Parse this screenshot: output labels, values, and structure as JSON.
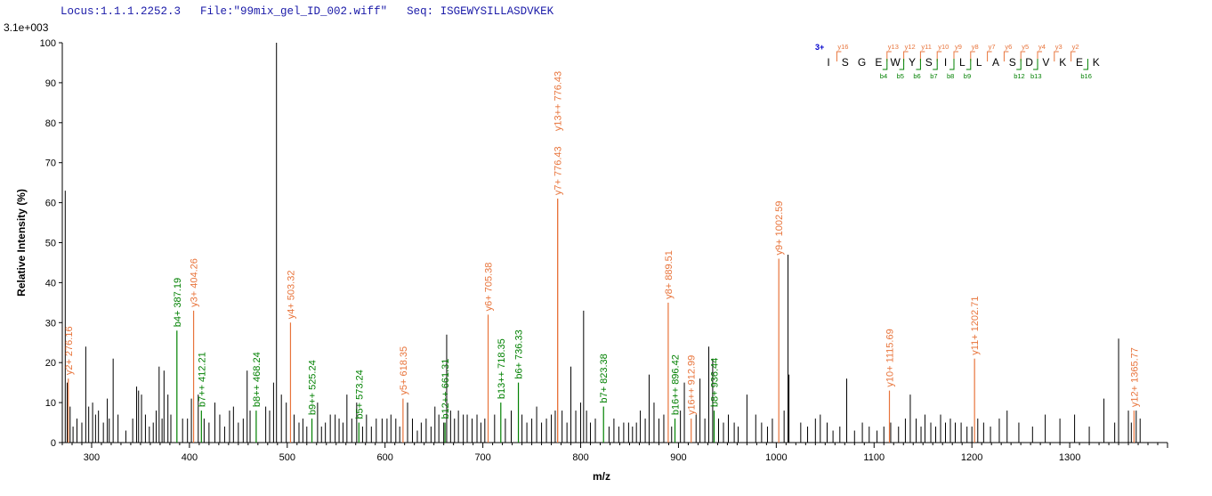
{
  "header": {
    "locus": "Locus:1.1.1.2252.3",
    "file": "File:\"99mix_gel_ID_002.wiff\"",
    "seq": "Seq: ISGEWYSILLASDVKEK"
  },
  "colors": {
    "b_ion": "#008000",
    "y_ion": "#e8743b",
    "unassigned": "#000000",
    "charge": "#0000cc"
  },
  "chart_data": {
    "type": "bar",
    "subtype": "mass-spectrum",
    "scale_label": "3.1e+003",
    "xlabel": "m/z",
    "ylabel": "Relative   Intensity (%)",
    "xlim": [
      270,
      1400
    ],
    "ylim": [
      0,
      100
    ],
    "xticks": [
      300,
      400,
      500,
      600,
      700,
      800,
      900,
      1000,
      1100,
      1200,
      1300
    ],
    "yticks": [
      0,
      10,
      20,
      30,
      40,
      50,
      60,
      70,
      80,
      90,
      100
    ],
    "annotated_peaks": [
      {
        "mz": 276.16,
        "intensity": 16,
        "label": "y2+ 276.16",
        "ion": "y"
      },
      {
        "mz": 387.19,
        "intensity": 28,
        "label": "b4+ 387.19",
        "ion": "b"
      },
      {
        "mz": 404.26,
        "intensity": 33,
        "label": "y3+ 404.26",
        "ion": "y"
      },
      {
        "mz": 412.21,
        "intensity": 8,
        "label": "b7++ 412.21",
        "ion": "b"
      },
      {
        "mz": 468.24,
        "intensity": 8,
        "label": "b8++ 468.24",
        "ion": "b"
      },
      {
        "mz": 503.32,
        "intensity": 30,
        "label": "y4+ 503.32",
        "ion": "y"
      },
      {
        "mz": 525.24,
        "intensity": 6,
        "label": "b9++ 525.24",
        "ion": "b"
      },
      {
        "mz": 573.24,
        "intensity": 5,
        "label": "b5+ 573.24",
        "ion": "b"
      },
      {
        "mz": 618.35,
        "intensity": 11,
        "label": "y5+ 618.35",
        "ion": "y"
      },
      {
        "mz": 661.31,
        "intensity": 5,
        "label": "b12++ 661.31",
        "ion": "b"
      },
      {
        "mz": 705.38,
        "intensity": 32,
        "label": "y6+ 705.38",
        "ion": "y"
      },
      {
        "mz": 718.35,
        "intensity": 10,
        "label": "b13++ 718.35",
        "ion": "b"
      },
      {
        "mz": 736.33,
        "intensity": 15,
        "label": "b6+ 736.33",
        "ion": "b"
      },
      {
        "mz": 776.43,
        "intensity": 61,
        "label": "y7+ 776.43",
        "ion": "y"
      },
      {
        "mz": 776.43,
        "intensity": 61,
        "label": "y13++ 776.43",
        "ion": "y"
      },
      {
        "mz": 823.38,
        "intensity": 9,
        "label": "b7+ 823.38",
        "ion": "b"
      },
      {
        "mz": 889.51,
        "intensity": 35,
        "label": "y8+ 889.51",
        "ion": "y"
      },
      {
        "mz": 896.42,
        "intensity": 6,
        "label": "b16++ 896.42",
        "ion": "b"
      },
      {
        "mz": 912.99,
        "intensity": 6,
        "label": "y16++ 912.99",
        "ion": "y"
      },
      {
        "mz": 936.44,
        "intensity": 8,
        "label": "b8+ 936.44",
        "ion": "b"
      },
      {
        "mz": 1002.59,
        "intensity": 46,
        "label": "y9+ 1002.59",
        "ion": "y"
      },
      {
        "mz": 1115.69,
        "intensity": 13,
        "label": "y10+ 1115.69",
        "ion": "y"
      },
      {
        "mz": 1202.71,
        "intensity": 21,
        "label": "y11+ 1202.71",
        "ion": "y"
      },
      {
        "mz": 1365.77,
        "intensity": 8,
        "label": "y12+ 1365.77",
        "ion": "y"
      }
    ],
    "unassigned_peaks": [
      [
        273,
        63
      ],
      [
        275,
        15
      ],
      [
        278,
        9
      ],
      [
        281,
        4
      ],
      [
        285,
        6
      ],
      [
        290,
        5
      ],
      [
        294,
        24
      ],
      [
        297,
        9
      ],
      [
        301,
        10
      ],
      [
        304,
        7
      ],
      [
        307,
        8
      ],
      [
        312,
        5
      ],
      [
        316,
        11
      ],
      [
        318,
        6
      ],
      [
        322,
        21
      ],
      [
        327,
        7
      ],
      [
        335,
        3
      ],
      [
        342,
        6
      ],
      [
        346,
        14
      ],
      [
        348,
        13
      ],
      [
        351,
        12
      ],
      [
        355,
        7
      ],
      [
        359,
        4
      ],
      [
        363,
        5
      ],
      [
        366,
        8
      ],
      [
        369,
        19
      ],
      [
        372,
        6
      ],
      [
        374,
        18
      ],
      [
        378,
        12
      ],
      [
        381,
        7
      ],
      [
        393,
        6
      ],
      [
        398,
        6
      ],
      [
        402,
        11
      ],
      [
        409,
        12
      ],
      [
        415,
        6
      ],
      [
        420,
        5
      ],
      [
        426,
        10
      ],
      [
        431,
        7
      ],
      [
        436,
        4
      ],
      [
        441,
        8
      ],
      [
        445,
        9
      ],
      [
        450,
        5
      ],
      [
        455,
        6
      ],
      [
        459,
        18
      ],
      [
        462,
        8
      ],
      [
        478,
        9
      ],
      [
        482,
        8
      ],
      [
        486,
        15
      ],
      [
        489,
        100
      ],
      [
        494,
        12
      ],
      [
        499,
        10
      ],
      [
        507,
        7
      ],
      [
        512,
        5
      ],
      [
        516,
        6
      ],
      [
        520,
        4
      ],
      [
        531,
        10
      ],
      [
        535,
        4
      ],
      [
        539,
        5
      ],
      [
        544,
        7
      ],
      [
        549,
        7
      ],
      [
        553,
        6
      ],
      [
        557,
        5
      ],
      [
        561,
        12
      ],
      [
        566,
        6
      ],
      [
        571,
        10
      ],
      [
        577,
        4
      ],
      [
        581,
        7
      ],
      [
        586,
        4
      ],
      [
        591,
        6
      ],
      [
        597,
        6
      ],
      [
        602,
        6
      ],
      [
        606,
        7
      ],
      [
        611,
        6
      ],
      [
        615,
        4
      ],
      [
        623,
        10
      ],
      [
        628,
        6
      ],
      [
        633,
        3
      ],
      [
        637,
        5
      ],
      [
        642,
        6
      ],
      [
        647,
        4
      ],
      [
        651,
        9
      ],
      [
        655,
        7
      ],
      [
        660,
        5
      ],
      [
        663,
        27
      ],
      [
        667,
        8
      ],
      [
        671,
        6
      ],
      [
        675,
        8
      ],
      [
        680,
        7
      ],
      [
        684,
        7
      ],
      [
        689,
        6
      ],
      [
        694,
        7
      ],
      [
        698,
        5
      ],
      [
        702,
        6
      ],
      [
        712,
        7
      ],
      [
        723,
        6
      ],
      [
        729,
        8
      ],
      [
        740,
        7
      ],
      [
        745,
        5
      ],
      [
        750,
        6
      ],
      [
        755,
        9
      ],
      [
        760,
        5
      ],
      [
        765,
        6
      ],
      [
        770,
        7
      ],
      [
        774,
        8
      ],
      [
        781,
        8
      ],
      [
        786,
        5
      ],
      [
        790,
        19
      ],
      [
        795,
        8
      ],
      [
        800,
        10
      ],
      [
        803,
        33
      ],
      [
        806,
        8
      ],
      [
        810,
        5
      ],
      [
        815,
        6
      ],
      [
        829,
        4
      ],
      [
        834,
        6
      ],
      [
        839,
        4
      ],
      [
        844,
        5
      ],
      [
        849,
        5
      ],
      [
        853,
        4
      ],
      [
        857,
        5
      ],
      [
        861,
        8
      ],
      [
        866,
        6
      ],
      [
        870,
        17
      ],
      [
        875,
        10
      ],
      [
        880,
        6
      ],
      [
        885,
        7
      ],
      [
        893,
        4
      ],
      [
        902,
        8
      ],
      [
        906,
        15
      ],
      [
        918,
        7
      ],
      [
        922,
        16
      ],
      [
        927,
        6
      ],
      [
        931,
        24
      ],
      [
        935,
        21
      ],
      [
        941,
        6
      ],
      [
        946,
        5
      ],
      [
        951,
        7
      ],
      [
        957,
        5
      ],
      [
        961,
        4
      ],
      [
        970,
        12
      ],
      [
        979,
        7
      ],
      [
        985,
        5
      ],
      [
        991,
        4
      ],
      [
        996,
        6
      ],
      [
        1008,
        8
      ],
      [
        1012,
        47
      ],
      [
        1013,
        17
      ],
      [
        1025,
        5
      ],
      [
        1032,
        4
      ],
      [
        1040,
        6
      ],
      [
        1045,
        7
      ],
      [
        1052,
        5
      ],
      [
        1058,
        3
      ],
      [
        1065,
        4
      ],
      [
        1072,
        16
      ],
      [
        1080,
        3
      ],
      [
        1088,
        5
      ],
      [
        1095,
        4
      ],
      [
        1103,
        3
      ],
      [
        1110,
        4
      ],
      [
        1117,
        5
      ],
      [
        1125,
        4
      ],
      [
        1132,
        6
      ],
      [
        1137,
        12
      ],
      [
        1143,
        6
      ],
      [
        1148,
        4
      ],
      [
        1152,
        7
      ],
      [
        1158,
        5
      ],
      [
        1163,
        4
      ],
      [
        1168,
        7
      ],
      [
        1173,
        5
      ],
      [
        1178,
        6
      ],
      [
        1183,
        5
      ],
      [
        1189,
        5
      ],
      [
        1195,
        4
      ],
      [
        1200,
        4
      ],
      [
        1206,
        6
      ],
      [
        1212,
        5
      ],
      [
        1219,
        4
      ],
      [
        1228,
        6
      ],
      [
        1236,
        8
      ],
      [
        1248,
        5
      ],
      [
        1262,
        4
      ],
      [
        1275,
        7
      ],
      [
        1290,
        6
      ],
      [
        1305,
        7
      ],
      [
        1320,
        4
      ],
      [
        1335,
        11
      ],
      [
        1346,
        5
      ],
      [
        1350,
        26
      ],
      [
        1360,
        8
      ],
      [
        1363,
        5
      ],
      [
        1368,
        8
      ],
      [
        1372,
        6
      ]
    ],
    "peptide": {
      "charge": "3+",
      "residues": [
        "I",
        "S",
        "G",
        "E",
        "W",
        "Y",
        "S",
        "I",
        "L",
        "L",
        "A",
        "S",
        "D",
        "V",
        "K",
        "E",
        "K"
      ],
      "y_marks": [
        {
          "after": 1,
          "label": "y16"
        },
        {
          "after": 4,
          "label": "y13"
        },
        {
          "after": 5,
          "label": "y12"
        },
        {
          "after": 6,
          "label": "y11"
        },
        {
          "after": 7,
          "label": "y10"
        },
        {
          "after": 8,
          "label": "y9"
        },
        {
          "after": 9,
          "label": "y8"
        },
        {
          "after": 10,
          "label": "y7"
        },
        {
          "after": 11,
          "label": "y6"
        },
        {
          "after": 12,
          "label": "y5"
        },
        {
          "after": 13,
          "label": "y4"
        },
        {
          "after": 14,
          "label": "y3"
        },
        {
          "after": 15,
          "label": "y2"
        }
      ],
      "b_marks": [
        {
          "after": 4,
          "label": "b4"
        },
        {
          "after": 5,
          "label": "b5"
        },
        {
          "after": 6,
          "label": "b6"
        },
        {
          "after": 7,
          "label": "b7"
        },
        {
          "after": 8,
          "label": "b8"
        },
        {
          "after": 9,
          "label": "b9"
        },
        {
          "after": 12,
          "label": "b12"
        },
        {
          "after": 13,
          "label": "b13"
        },
        {
          "after": 16,
          "label": "b16"
        }
      ]
    }
  }
}
